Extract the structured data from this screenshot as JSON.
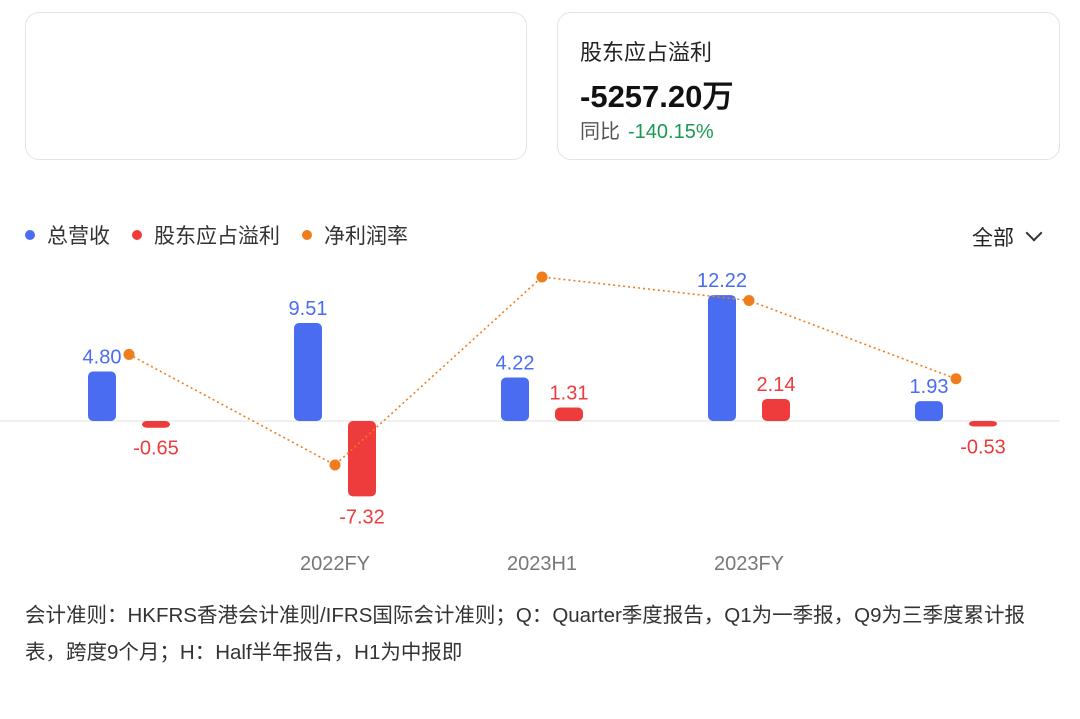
{
  "card_right": {
    "title": "股东应占溢利",
    "value": "-5257.20万",
    "yoy_label": "同比",
    "yoy_value": "-140.15%",
    "yoy_color": "#1a9a50"
  },
  "legend": [
    {
      "label": "总营收",
      "color": "#4a6cf0"
    },
    {
      "label": "股东应占溢利",
      "color": "#ee3b3b"
    },
    {
      "label": "净利润率",
      "color": "#f07d1b"
    }
  ],
  "filter": {
    "label": "全部"
  },
  "chart_data": {
    "type": "bar",
    "categories": [
      "",
      "2022FY",
      "2023H1",
      "2023FY",
      ""
    ],
    "series": [
      {
        "name": "总营收",
        "values": [
          4.8,
          9.51,
          4.22,
          12.22,
          1.93
        ],
        "color": "#4a6cf0",
        "kind": "bar"
      },
      {
        "name": "股东应占溢利",
        "values": [
          -0.65,
          -7.32,
          1.31,
          2.14,
          -0.53
        ],
        "color": "#ee3b3b",
        "kind": "bar"
      },
      {
        "name": "净利润率",
        "values": [
          -13.5,
          -77,
          31,
          17.5,
          -27.5
        ],
        "color": "#f07d1b",
        "kind": "line",
        "dotted": true
      }
    ],
    "ylim": [
      -10,
      13
    ],
    "line_ylim": [
      -100,
      35
    ],
    "grid": false,
    "legend_position": "top-left"
  },
  "footnote": "会计准则：HKFRS香港会计准则/IFRS国际会计准则；Q：Quarter季度报告，Q1为一季报，Q9为三季度累计报表，跨度9个月；H：Half半年报告，H1为中报即"
}
